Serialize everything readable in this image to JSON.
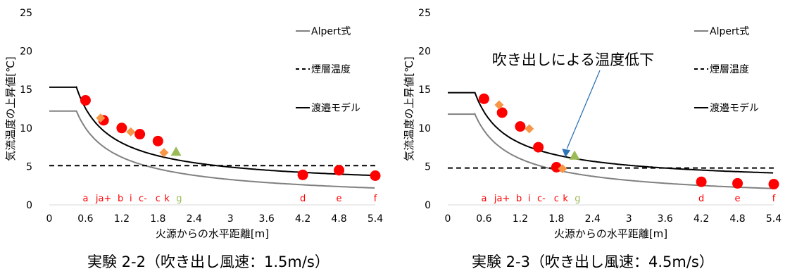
{
  "chart_data": [
    {
      "type": "line",
      "caption": "実験 2-2（吹き出し風速：1.5m/s）",
      "xlabel": "火源からの水平距離[m]",
      "ylabel": "気流温度の上昇値[℃]",
      "xlim": [
        0,
        5.4
      ],
      "ylim": [
        0,
        25
      ],
      "xticks": [
        "0",
        "0.6",
        "1.2",
        "1.8",
        "2.4",
        "3",
        "3.6",
        "4.2",
        "4.8",
        "5.4"
      ],
      "yticks": [
        "0",
        "5",
        "10",
        "15",
        "20",
        "25"
      ],
      "grid": false,
      "legend_position": "right",
      "legend": [
        {
          "name": "Alpert式",
          "style": "gray-solid"
        },
        {
          "name": "煙層温度",
          "style": "black-dashed"
        },
        {
          "name": "渡邉モデル",
          "style": "black-solid"
        }
      ],
      "curves": {
        "alpert": {
          "plateau": 12.2,
          "r_start": 0.45,
          "k": 5.28
        },
        "model": {
          "plateau": 15.3,
          "r_start": 0.45,
          "k": 8.0,
          "offset": 2.0
        }
      },
      "smoke_layer": 5.1,
      "series": [
        {
          "marker": "circle",
          "color": "#ff0000",
          "points": [
            [
              0.6,
              13.6
            ],
            [
              0.9,
              11.0
            ],
            [
              1.2,
              10.0
            ],
            [
              1.5,
              9.2
            ],
            [
              1.8,
              8.3
            ],
            [
              4.2,
              3.9
            ],
            [
              4.8,
              4.5
            ],
            [
              5.4,
              3.8
            ]
          ]
        },
        {
          "marker": "diamond",
          "color": "#f79646",
          "points": [
            [
              0.85,
              11.3
            ],
            [
              1.35,
              9.5
            ],
            [
              1.9,
              6.8
            ]
          ]
        },
        {
          "marker": "triangle",
          "color": "#9bbb59",
          "points": [
            [
              2.1,
              6.9
            ]
          ]
        }
      ],
      "point_labels": [
        {
          "text": "a",
          "x": 0.6,
          "color": "#ff0000"
        },
        {
          "text": "ja+",
          "x": 0.9,
          "color": "#ff0000"
        },
        {
          "text": "b",
          "x": 1.18,
          "color": "#ff0000"
        },
        {
          "text": "i",
          "x": 1.35,
          "color": "#ff0000"
        },
        {
          "text": "c-",
          "x": 1.55,
          "color": "#ff0000"
        },
        {
          "text": "c",
          "x": 1.8,
          "color": "#ff0000"
        },
        {
          "text": "k",
          "x": 1.95,
          "color": "#ff0000"
        },
        {
          "text": "g",
          "x": 2.15,
          "color": "#9bbb59"
        },
        {
          "text": "d",
          "x": 4.2,
          "color": "#ff0000"
        },
        {
          "text": "e",
          "x": 4.8,
          "color": "#ff0000"
        },
        {
          "text": "f",
          "x": 5.4,
          "color": "#ff0000"
        }
      ]
    },
    {
      "type": "line",
      "caption": "実験 2-3（吹き出し風速：4.5m/s）",
      "xlabel": "火源からの水平距離[m]",
      "ylabel": "気流温度の上昇値[℃]",
      "xlim": [
        0,
        5.4
      ],
      "ylim": [
        0,
        25
      ],
      "xticks": [
        "0",
        "0.6",
        "1.2",
        "1.8",
        "2.4",
        "3",
        "3.6",
        "4.2",
        "4.8",
        "5.4"
      ],
      "yticks": [
        "0",
        "5",
        "10",
        "15",
        "20",
        "25"
      ],
      "grid": false,
      "legend_position": "right",
      "legend": [
        {
          "name": "Alpert式",
          "style": "gray-solid"
        },
        {
          "name": "煙層温度",
          "style": "black-dashed"
        },
        {
          "name": "渡邉モデル",
          "style": "black-solid"
        }
      ],
      "curves": {
        "alpert": {
          "plateau": 11.8,
          "r_start": 0.45,
          "k": 5.21
        },
        "model": {
          "plateau": 14.6,
          "r_start": 0.45,
          "k": 6.6,
          "offset": 2.5
        }
      },
      "smoke_layer": 4.8,
      "annotation": {
        "text": "吹き出しによる温度低下",
        "target": [
          1.95,
          6.2
        ]
      },
      "series": [
        {
          "marker": "circle",
          "color": "#ff0000",
          "points": [
            [
              0.6,
              13.8
            ],
            [
              0.9,
              12.0
            ],
            [
              1.2,
              10.2
            ],
            [
              1.5,
              7.5
            ],
            [
              1.8,
              4.9
            ],
            [
              4.2,
              3.0
            ],
            [
              4.8,
              2.8
            ],
            [
              5.4,
              2.7
            ]
          ]
        },
        {
          "marker": "diamond",
          "color": "#f79646",
          "points": [
            [
              0.85,
              13.0
            ],
            [
              1.35,
              9.9
            ],
            [
              1.9,
              4.7
            ]
          ]
        },
        {
          "marker": "triangle",
          "color": "#9bbb59",
          "points": [
            [
              2.1,
              6.4
            ]
          ]
        }
      ],
      "point_labels": [
        {
          "text": "a",
          "x": 0.6,
          "color": "#ff0000"
        },
        {
          "text": "ja+",
          "x": 0.9,
          "color": "#ff0000"
        },
        {
          "text": "b",
          "x": 1.18,
          "color": "#ff0000"
        },
        {
          "text": "i",
          "x": 1.35,
          "color": "#ff0000"
        },
        {
          "text": "c-",
          "x": 1.55,
          "color": "#ff0000"
        },
        {
          "text": "c",
          "x": 1.8,
          "color": "#ff0000"
        },
        {
          "text": "k",
          "x": 1.95,
          "color": "#ff0000"
        },
        {
          "text": "g",
          "x": 2.15,
          "color": "#9bbb59"
        },
        {
          "text": "d",
          "x": 4.2,
          "color": "#ff0000"
        },
        {
          "text": "e",
          "x": 4.8,
          "color": "#ff0000"
        },
        {
          "text": "f",
          "x": 5.4,
          "color": "#ff0000"
        }
      ]
    }
  ]
}
